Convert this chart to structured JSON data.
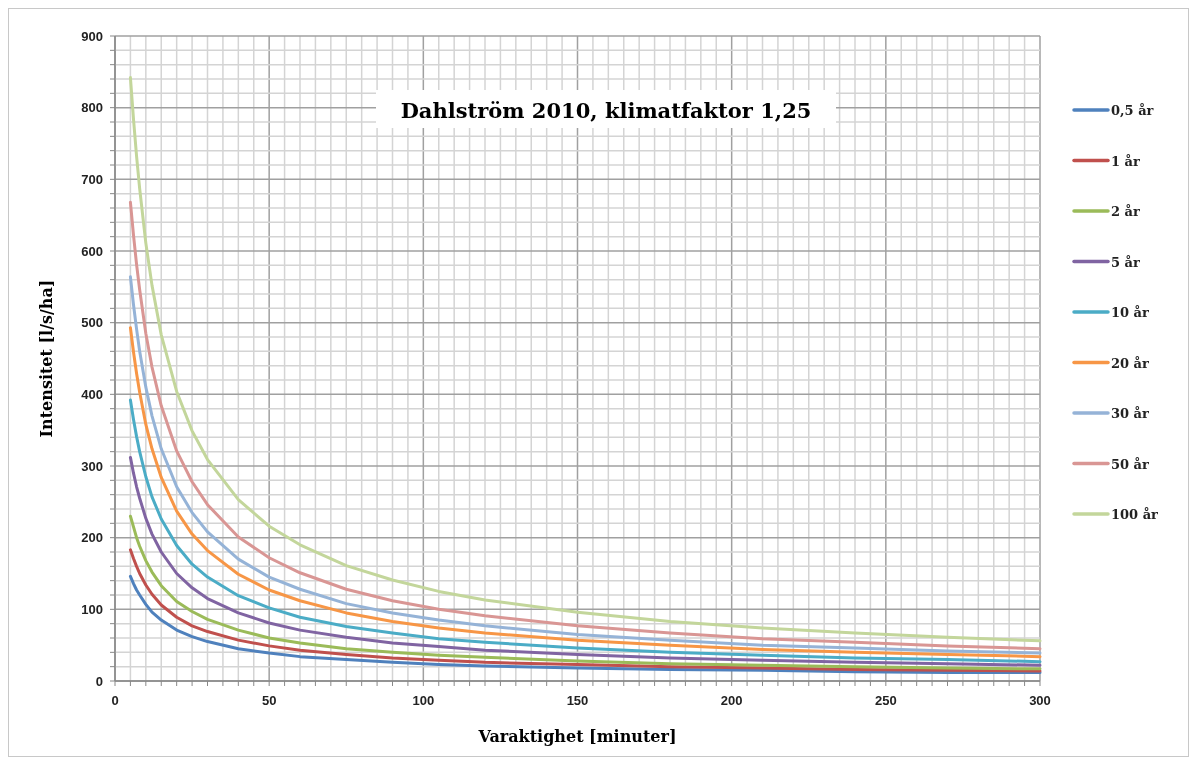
{
  "chart_data": {
    "type": "line",
    "title": "Dahlström 2010, klimatfaktor 1,25",
    "xlabel": "Varaktighet [minuter]",
    "ylabel": "Intensitet [l/s/ha]",
    "x": [
      5,
      6,
      7,
      8,
      10,
      12,
      15,
      20,
      25,
      30,
      40,
      50,
      60,
      75,
      90,
      105,
      120,
      150,
      180,
      210,
      240,
      270,
      300
    ],
    "series": [
      {
        "name": "0,5 år",
        "color": "#4f81bd",
        "values": [
          146,
          136,
          127,
          120,
          107,
          96,
          85,
          71,
          62,
          55,
          45,
          39,
          34,
          30,
          26,
          23,
          21,
          18,
          16,
          15,
          13,
          12,
          12
        ]
      },
      {
        "name": "1 år",
        "color": "#c0504d",
        "values": [
          183,
          171,
          160,
          150,
          134,
          121,
          106,
          89,
          77,
          69,
          57,
          49,
          43,
          37,
          32,
          29,
          26,
          23,
          20,
          18,
          16,
          15,
          14
        ]
      },
      {
        "name": "2 år",
        "color": "#9bbb59",
        "values": [
          230,
          215,
          200,
          188,
          168,
          152,
          133,
          111,
          97,
          86,
          71,
          60,
          53,
          45,
          40,
          36,
          33,
          28,
          24,
          22,
          20,
          18,
          17
        ]
      },
      {
        "name": "5 år",
        "color": "#8064a2",
        "values": [
          312,
          290,
          271,
          255,
          227,
          205,
          180,
          150,
          130,
          115,
          95,
          81,
          71,
          61,
          53,
          48,
          43,
          37,
          32,
          29,
          26,
          24,
          22
        ]
      },
      {
        "name": "10 år",
        "color": "#4bacc6",
        "values": [
          392,
          365,
          341,
          320,
          285,
          257,
          226,
          189,
          163,
          145,
          119,
          102,
          89,
          76,
          67,
          59,
          54,
          46,
          40,
          36,
          32,
          30,
          27
        ]
      },
      {
        "name": "20 år",
        "color": "#f79646",
        "values": [
          493,
          459,
          429,
          403,
          358,
          324,
          284,
          237,
          205,
          182,
          149,
          127,
          112,
          95,
          83,
          74,
          67,
          57,
          50,
          44,
          40,
          37,
          34
        ]
      },
      {
        "name": "30 år",
        "color": "#95b3d7",
        "values": [
          564,
          525,
          491,
          460,
          410,
          370,
          324,
          271,
          235,
          208,
          170,
          145,
          128,
          108,
          95,
          85,
          77,
          65,
          57,
          50,
          46,
          42,
          39
        ]
      },
      {
        "name": "50 år",
        "color": "#d99694",
        "values": [
          668,
          622,
          581,
          546,
          485,
          438,
          384,
          321,
          278,
          246,
          201,
          172,
          151,
          128,
          112,
          100,
          91,
          77,
          67,
          59,
          54,
          49,
          45
        ]
      },
      {
        "name": "100 år",
        "color": "#c3d69b",
        "values": [
          842,
          784,
          732,
          687,
          611,
          552,
          483,
          404,
          349,
          309,
          253,
          216,
          190,
          161,
          141,
          125,
          113,
          96,
          83,
          74,
          67,
          61,
          56
        ]
      }
    ],
    "xlim": [
      0,
      300
    ],
    "ylim": [
      0,
      900
    ],
    "xticks": [
      0,
      {
        "value": 5,
        "label": null
      },
      {
        "value": 10,
        "label": null
      },
      {
        "value": 15,
        "label": null
      },
      {
        "value": 20,
        "label": null
      },
      {
        "value": 25,
        "label": null
      },
      {
        "value": 30,
        "label": null
      },
      {
        "value": 35,
        "label": null
      },
      {
        "value": 40,
        "label": null
      },
      {
        "value": 45,
        "label": null
      },
      50,
      {
        "value": 55,
        "label": null
      },
      {
        "value": 60,
        "label": null
      },
      {
        "value": 65,
        "label": null
      },
      {
        "value": 70,
        "label": null
      },
      {
        "value": 75,
        "label": null
      },
      {
        "value": 80,
        "label": null
      },
      {
        "value": 85,
        "label": null
      },
      {
        "value": 90,
        "label": null
      },
      {
        "value": 95,
        "label": null
      },
      100,
      {
        "value": 105,
        "label": null
      },
      {
        "value": 110,
        "label": null
      },
      {
        "value": 115,
        "label": null
      },
      {
        "value": 120,
        "label": null
      },
      {
        "value": 125,
        "label": null
      },
      {
        "value": 130,
        "label": null
      },
      {
        "value": 135,
        "label": null
      },
      {
        "value": 140,
        "label": null
      },
      {
        "value": 145,
        "label": null
      },
      150,
      {
        "value": 155,
        "label": null
      },
      {
        "value": 160,
        "label": null
      },
      {
        "value": 165,
        "label": null
      },
      {
        "value": 170,
        "label": null
      },
      {
        "value": 175,
        "label": null
      },
      {
        "value": 180,
        "label": null
      },
      {
        "value": 185,
        "label": null
      },
      {
        "value": 190,
        "label": null
      },
      {
        "value": 195,
        "label": null
      },
      200,
      {
        "value": 205,
        "label": null
      },
      {
        "value": 210,
        "label": null
      },
      {
        "value": 215,
        "label": null
      },
      {
        "value": 220,
        "label": null
      },
      {
        "value": 225,
        "label": null
      },
      {
        "value": 230,
        "label": null
      },
      {
        "value": 235,
        "label": null
      },
      {
        "value": 240,
        "label": null
      },
      {
        "value": 245,
        "label": null
      },
      250,
      {
        "value": 255,
        "label": null
      },
      {
        "value": 260,
        "label": null
      },
      {
        "value": 265,
        "label": null
      },
      {
        "value": 270,
        "label": null
      },
      {
        "value": 275,
        "label": null
      },
      {
        "value": 280,
        "label": null
      },
      {
        "value": 285,
        "label": null
      },
      {
        "value": 290,
        "label": null
      },
      {
        "value": 295,
        "label": null
      },
      300
    ],
    "yticks": [
      0,
      {
        "value": 20,
        "label": null
      },
      {
        "value": 40,
        "label": null
      },
      {
        "value": 60,
        "label": null
      },
      {
        "value": 80,
        "label": null
      },
      100,
      {
        "value": 120,
        "label": null
      },
      {
        "value": 140,
        "label": null
      },
      {
        "value": 160,
        "label": null
      },
      {
        "value": 180,
        "label": null
      },
      200,
      {
        "value": 220,
        "label": null
      },
      {
        "value": 240,
        "label": null
      },
      {
        "value": 260,
        "label": null
      },
      {
        "value": 280,
        "label": null
      },
      300,
      {
        "value": 320,
        "label": null
      },
      {
        "value": 340,
        "label": null
      },
      {
        "value": 360,
        "label": null
      },
      {
        "value": 380,
        "label": null
      },
      400,
      {
        "value": 420,
        "label": null
      },
      {
        "value": 440,
        "label": null
      },
      {
        "value": 460,
        "label": null
      },
      {
        "value": 480,
        "label": null
      },
      500,
      {
        "value": 520,
        "label": null
      },
      {
        "value": 540,
        "label": null
      },
      {
        "value": 560,
        "label": null
      },
      {
        "value": 580,
        "label": null
      },
      600,
      {
        "value": 620,
        "label": null
      },
      {
        "value": 640,
        "label": null
      },
      {
        "value": 660,
        "label": null
      },
      {
        "value": 680,
        "label": null
      },
      700,
      {
        "value": 720,
        "label": null
      },
      {
        "value": 740,
        "label": null
      },
      {
        "value": 760,
        "label": null
      },
      {
        "value": 780,
        "label": null
      },
      800,
      {
        "value": 820,
        "label": null
      },
      {
        "value": 840,
        "label": null
      },
      {
        "value": 860,
        "label": null
      },
      {
        "value": 880,
        "label": null
      },
      900
    ],
    "grid": true,
    "legend": "right",
    "marker": "none",
    "line_style": "solid"
  }
}
